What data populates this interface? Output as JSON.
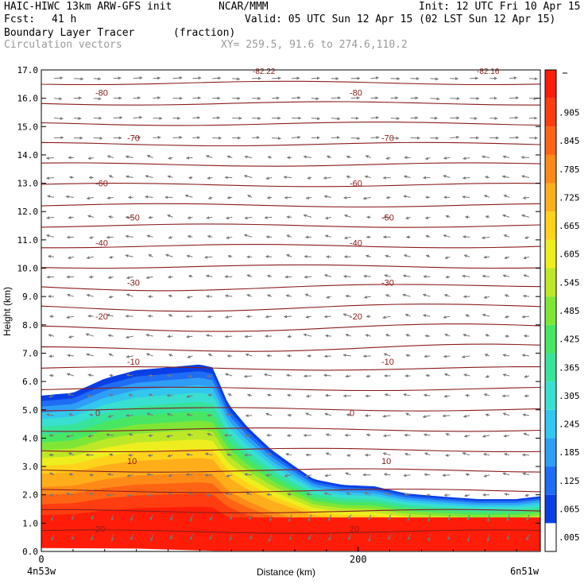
{
  "header": {
    "model": "HAIC-HIWC 13km ARW-GFS init",
    "org": "NCAR/MMM",
    "init": "Init: 12 UTC Fri 10 Apr 15",
    "fcst_label": "Fcst:",
    "fcst_value": "41 h",
    "valid": "Valid: 05 UTC Sun 12 Apr 15 (02 LST Sun 12 Apr 15)",
    "field": "Boundary Layer Tracer",
    "units": "(fraction)",
    "field2": "Circulation vectors",
    "xy": "XY= 259.5, 91.6 to 274.6,110.2"
  },
  "chart_data": {
    "type": "heatmap",
    "ylabel": "Height (km)",
    "xlabel": "Distance (km)",
    "x_left_label": "4n53w",
    "x_right_label": "6n51w",
    "x_ticks": [
      {
        "value": 0,
        "label": "0"
      },
      {
        "value": 200,
        "label": "200"
      }
    ],
    "xlim": [
      0,
      315
    ],
    "ylim": [
      0,
      17
    ],
    "y_ticks": [
      "0.0",
      "1.0",
      "2.0",
      "3.0",
      "4.0",
      "5.0",
      "6.0",
      "7.0",
      "8.0",
      "9.0",
      "10.0",
      "11.0",
      "12.0",
      "13.0",
      "14.0",
      "15.0",
      "16.0",
      "17.0"
    ],
    "colorbar_labels": [
      ".005",
      ".065",
      ".125",
      ".185",
      ".245",
      ".305",
      ".365",
      ".425",
      ".485",
      ".545",
      ".605",
      ".665",
      ".725",
      ".785",
      ".845",
      ".905"
    ],
    "colorbar_colors": [
      "#ffffff",
      "#0a3fe6",
      "#1f6cf5",
      "#2f9ef7",
      "#33c6ef",
      "#39dfd0",
      "#38e39a",
      "#49e663",
      "#7fe636",
      "#bde828",
      "#eeee1e",
      "#ffd21c",
      "#ffae1b",
      "#ff8a18",
      "#ff6414",
      "#ff3d10",
      "#ff1c08"
    ],
    "tracer_top_km": [
      [
        0,
        5.5
      ],
      [
        20,
        5.6
      ],
      [
        40,
        6.1
      ],
      [
        60,
        6.4
      ],
      [
        80,
        6.5
      ],
      [
        100,
        6.6
      ],
      [
        108,
        6.5
      ],
      [
        112,
        6.0
      ],
      [
        118,
        5.2
      ],
      [
        130,
        4.4
      ],
      [
        145,
        3.6
      ],
      [
        160,
        3.0
      ],
      [
        172,
        2.55
      ],
      [
        190,
        2.35
      ],
      [
        210,
        2.3
      ],
      [
        230,
        2.05
      ],
      [
        250,
        1.95
      ],
      [
        275,
        1.85
      ],
      [
        300,
        1.85
      ],
      [
        315,
        1.95
      ]
    ],
    "isotherms_C": [
      {
        "label": "-80",
        "y": 16.2
      },
      {
        "label": "-70",
        "y": 14.6
      },
      {
        "label": "-60",
        "y": 13.0
      },
      {
        "label": "-50",
        "y": 11.8
      },
      {
        "label": "-40",
        "y": 10.9
      },
      {
        "label": "-30",
        "y": 9.5
      },
      {
        "label": "-20",
        "y": 8.3
      },
      {
        "label": "-10",
        "y": 6.7
      },
      {
        "label": "0",
        "y": 4.9
      },
      {
        "label": "10",
        "y": 3.2
      },
      {
        "label": "20",
        "y": 0.8
      }
    ],
    "top_labels": [
      "-82.22",
      "-82.16"
    ]
  }
}
